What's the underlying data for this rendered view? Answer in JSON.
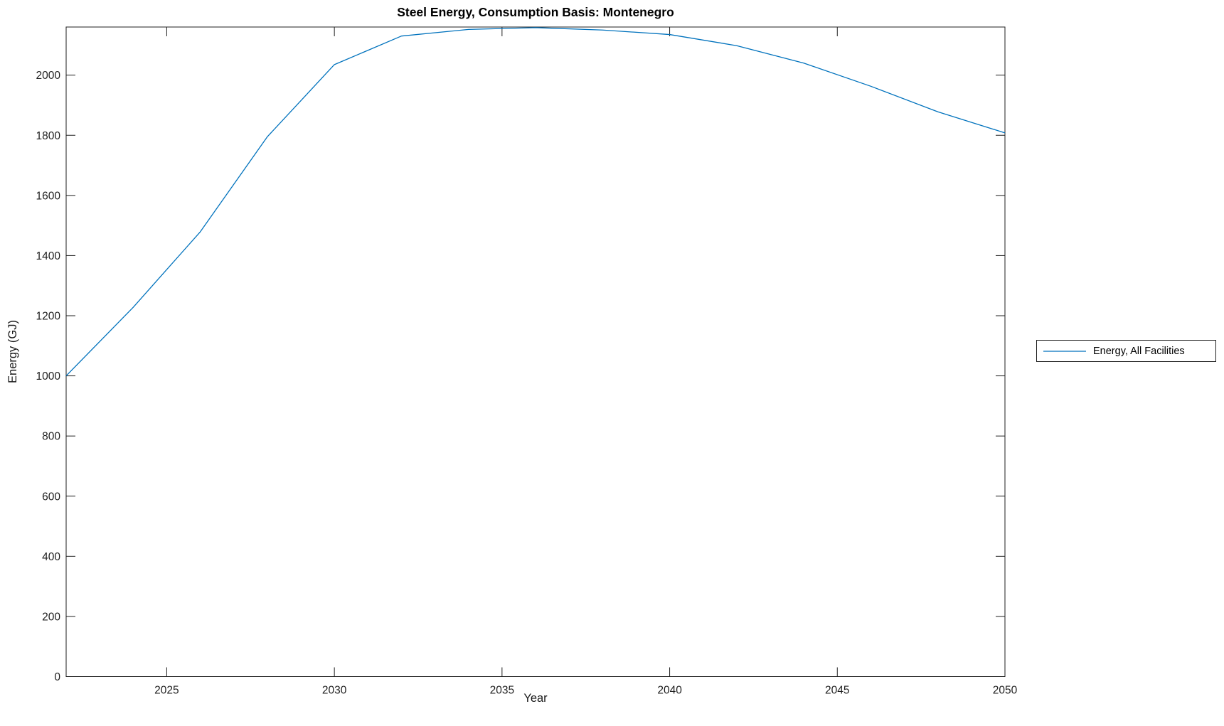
{
  "figure": {
    "background": "#ffffff",
    "axis_color": "#1f1f1f"
  },
  "chart_data": {
    "type": "line",
    "title": "Steel Energy, Consumption Basis: Montenegro",
    "xlabel": "Year",
    "ylabel": "Energy (GJ)",
    "xlim": [
      2022,
      2050
    ],
    "ylim": [
      0,
      2160
    ],
    "xticks": [
      2025,
      2030,
      2035,
      2040,
      2045,
      2050
    ],
    "yticks": [
      0,
      200,
      400,
      600,
      800,
      1000,
      1200,
      1400,
      1600,
      1800,
      2000
    ],
    "grid": false,
    "legend_position": "right-outside",
    "series": [
      {
        "name": "Energy, All Facilities",
        "color": "#0072BD",
        "x": [
          2022,
          2024,
          2026,
          2028,
          2030,
          2032,
          2034,
          2036,
          2038,
          2040,
          2042,
          2044,
          2046,
          2048,
          2050
        ],
        "y": [
          1000,
          1228,
          1479,
          1795,
          2035,
          2130,
          2152,
          2158,
          2150,
          2135,
          2098,
          2040,
          1963,
          1878,
          1808
        ]
      }
    ]
  },
  "legend": {
    "items": [
      {
        "label": "Energy, All Facilities",
        "color": "#0072BD"
      }
    ]
  }
}
